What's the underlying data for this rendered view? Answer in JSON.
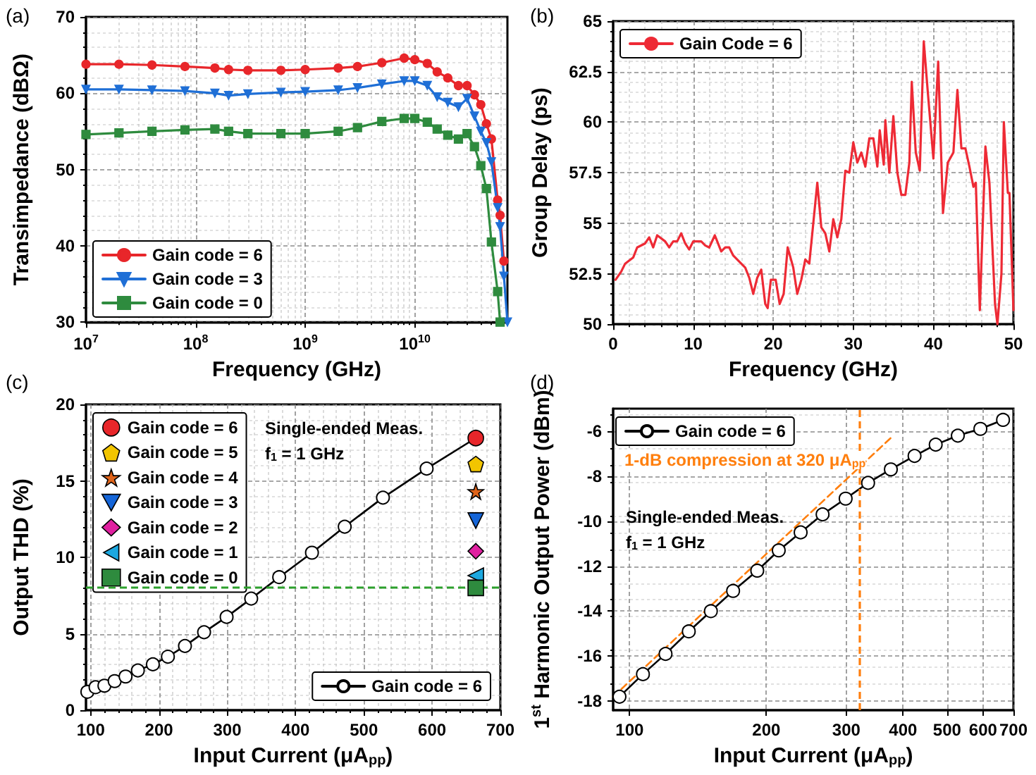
{
  "chart_data": [
    {
      "type": "line",
      "annotations": [
        "(a)"
      ],
      "xlabel": "Frequency (GHz)",
      "ylabel": "Transimpedance (dBΩ)",
      "log": "x",
      "grid": true,
      "legend": "bottom left",
      "x": [
        10000000,
        20000000,
        40000000,
        80000000,
        150000000,
        200000000,
        300000000,
        600000000,
        1000000000,
        2000000000,
        3000000000,
        5000000000,
        8000000000,
        10000000000,
        13000000000,
        16000000000,
        20000000000,
        25000000000,
        30000000000,
        35000000000,
        40000000000,
        45000000000,
        50000000000,
        57000000000,
        60000000000,
        65000000000,
        70000000000
      ],
      "xlim": [
        10000000,
        70000000000
      ],
      "xticks": [
        {
          "value": 10000000,
          "label": "10$^{7}$"
        },
        {
          "value": 100000000,
          "label": "10$^{8}$"
        },
        {
          "value": 1000000000,
          "label": "10$^{9}$"
        },
        {
          "value": 10000000000,
          "label": "10$^{10}$"
        }
      ],
      "ylim": [
        30,
        70
      ],
      "yticks": [
        30,
        40,
        50,
        60,
        70
      ],
      "series": [
        {
          "name": "Gain code = 6",
          "color": "#e8262a",
          "marker": "circle",
          "values": [
            63.8,
            63.8,
            63.7,
            63.5,
            63.3,
            63.1,
            63.0,
            63.0,
            63.1,
            63.3,
            63.5,
            64.0,
            64.6,
            64.4,
            63.9,
            62.8,
            62.0,
            61.0,
            61.0,
            59.8,
            58.5,
            56.0,
            54.0,
            46.0,
            44.0,
            38.0,
            null
          ]
        },
        {
          "name": "Gain code = 3",
          "color": "#1f6fd6",
          "marker": "triangle-down",
          "values": [
            60.5,
            60.5,
            60.4,
            60.3,
            60.0,
            59.7,
            59.9,
            60.1,
            60.2,
            60.4,
            60.7,
            61.2,
            61.6,
            61.6,
            61.0,
            59.5,
            58.8,
            58.2,
            59.3,
            57.0,
            55.0,
            53.5,
            51.0,
            45.0,
            42.5,
            36.0,
            30.0
          ]
        },
        {
          "name": "Gain code = 0",
          "color": "#2e8b3e",
          "marker": "square",
          "values": [
            54.6,
            54.8,
            55.0,
            55.2,
            55.3,
            55.0,
            54.7,
            54.7,
            54.7,
            55.0,
            55.5,
            56.3,
            56.7,
            56.7,
            56.2,
            55.3,
            54.5,
            54.0,
            54.7,
            53.0,
            50.5,
            47.5,
            40.5,
            34.0,
            30.0,
            null,
            null
          ]
        }
      ]
    },
    {
      "type": "line",
      "annotations": [
        "(b)"
      ],
      "xlabel": "Frequency (GHz)",
      "ylabel": "Group Delay (ps)",
      "grid": true,
      "legend": "top left",
      "xlim": [
        0,
        50
      ],
      "xticks": [
        0,
        10,
        20,
        30,
        40,
        50
      ],
      "ylim": [
        50,
        65
      ],
      "yticks": [
        50,
        52.5,
        55,
        57.5,
        60,
        62.5,
        65
      ],
      "x": [
        0.3,
        1,
        1.5,
        2.5,
        3,
        4,
        4.5,
        5,
        5.5,
        6.5,
        7,
        7.5,
        8,
        8.5,
        9,
        9.5,
        10,
        11,
        11.5,
        12,
        12.7,
        13.5,
        14,
        14.5,
        15,
        16,
        16.5,
        17,
        17.5,
        18,
        18.5,
        19,
        19.3,
        19.7,
        20.3,
        20.8,
        21.3,
        21.8,
        22.5,
        23,
        23.5,
        24,
        24.5,
        25,
        25.5,
        26,
        26.5,
        27,
        27.5,
        28,
        28.5,
        29,
        29.5,
        30,
        30.5,
        31,
        31.5,
        32,
        32.5,
        33,
        33.3,
        33.8,
        34,
        34.5,
        35,
        35.5,
        36,
        36.5,
        37,
        37.3,
        37.8,
        38.3,
        38.8,
        39.3,
        40,
        40.6,
        41.2,
        41.8,
        42.5,
        43,
        43.5,
        44,
        44.5,
        45,
        45.3,
        45.8,
        46.5,
        47,
        47.7,
        48,
        48.5,
        48.8,
        49.3,
        49.5,
        50
      ],
      "series": [
        {
          "name": "Gain Code = 6",
          "color": "#ee2a35",
          "marker": "none",
          "values": [
            52.2,
            52.6,
            53.0,
            53.3,
            53.8,
            54.0,
            54.3,
            53.8,
            54.4,
            54.1,
            53.8,
            54.1,
            54.1,
            54.5,
            54.0,
            53.7,
            54.1,
            54.1,
            53.9,
            53.8,
            54.4,
            53.6,
            53.8,
            53.8,
            53.4,
            53.0,
            52.8,
            52.3,
            51.5,
            52.3,
            52.7,
            51.0,
            50.8,
            52.2,
            52.2,
            51.0,
            51.5,
            53.8,
            52.8,
            51.5,
            52.2,
            53.2,
            53.0,
            55.0,
            57.0,
            54.8,
            54.5,
            53.6,
            55.2,
            54.3,
            55.2,
            57.6,
            57.5,
            59.0,
            58.0,
            58.5,
            57.8,
            59.2,
            59.2,
            57.8,
            59.6,
            57.9,
            60.1,
            57.5,
            60.3,
            57.5,
            56.4,
            56.4,
            58.0,
            62.0,
            58.5,
            57.6,
            64.0,
            61.5,
            58.2,
            63.0,
            55.5,
            58.0,
            58.5,
            61.6,
            58.7,
            58.7,
            57.8,
            56.8,
            57.0,
            50.7,
            58.8,
            57.0,
            51.0,
            50.0,
            52.5,
            60.0,
            56.5,
            56.5,
            50.7
          ]
        }
      ]
    },
    {
      "type": "line",
      "annotations": [
        "(c)",
        "Single-ended Meas.",
        "f$_{1}$ = 1 GHz"
      ],
      "xlabel": "Input Current (μA$_{pp}$)",
      "ylabel": "Output THD (%)",
      "grid": true,
      "legend": "top left",
      "xlim": [
        93,
        700
      ],
      "xticks": [
        100,
        200,
        300,
        400,
        500,
        600,
        700
      ],
      "ylim": [
        0,
        20
      ],
      "yticks": [
        0,
        5,
        10,
        15,
        20
      ],
      "x": [
        95,
        107,
        120,
        135,
        151,
        169,
        191,
        213,
        238,
        266,
        299,
        335,
        376,
        424,
        472,
        528,
        592,
        664
      ],
      "ref_lines": [
        {
          "axis": "y",
          "value": 8,
          "color": "#2ca02c",
          "line_style": "dashed"
        }
      ],
      "series": [
        {
          "name": "Gain code = 6",
          "color": "#000000",
          "marker": "circle",
          "values": [
            1.2,
            1.5,
            1.6,
            1.9,
            2.2,
            2.6,
            3.0,
            3.5,
            4.2,
            5.1,
            6.1,
            7.3,
            8.7,
            10.3,
            12.0,
            13.9,
            15.8,
            17.8
          ]
        },
        {
          "type": "scatter",
          "name": "Gain code = 6",
          "color": "#e8262a",
          "marker": "circle",
          "x": [
            664
          ],
          "values": [
            17.8
          ]
        },
        {
          "type": "scatter",
          "name": "Gain code = 5",
          "color": "#f2c500",
          "x": [
            664
          ],
          "values": [
            16.1
          ]
        },
        {
          "type": "scatter",
          "name": "Gain code = 4",
          "color": "#e0641a",
          "marker": "star",
          "x": [
            664
          ],
          "values": [
            14.3
          ]
        },
        {
          "type": "scatter",
          "name": "Gain code = 3",
          "color": "#1565d8",
          "marker": "triangle-down",
          "x": [
            664
          ],
          "values": [
            12.4
          ]
        },
        {
          "type": "scatter",
          "name": "Gain code = 2",
          "color": "#e020a0",
          "marker": "diamond",
          "x": [
            664
          ],
          "values": [
            10.4
          ]
        },
        {
          "type": "scatter",
          "name": "Gain code = 1",
          "color": "#1ca8e0",
          "marker": "triangle-left",
          "x": [
            664
          ],
          "values": [
            8.8
          ]
        },
        {
          "type": "scatter",
          "name": "Gain code = 0",
          "color": "#2e8b3e",
          "marker": "square",
          "x": [
            664
          ],
          "values": [
            8.0
          ]
        }
      ]
    },
    {
      "type": "line",
      "annotations": [
        "(d)",
        "Single-ended Meas.",
        "f$_{1}$ = 1 GHz"
      ],
      "xlabel": "Input Current (μA$_{pp}$)",
      "ylabel": "1$^{st}$ Harmonic Output Power (dBm)",
      "log": "x",
      "grid": true,
      "legend": "top left",
      "xlim": [
        92,
        700
      ],
      "xticks": [
        100,
        200,
        300,
        400,
        500,
        600,
        700
      ],
      "ylim": [
        -18.4,
        -5
      ],
      "yticks": [
        -18,
        -16,
        -14,
        -12,
        -10,
        -8,
        -6
      ],
      "x": [
        95,
        107,
        120,
        135,
        151,
        169,
        191,
        213,
        238,
        266,
        299,
        335,
        376,
        424,
        472,
        528,
        592,
        664
      ],
      "ref_lines": [
        {
          "axis": "x",
          "value": 320,
          "label": "1-dB compression at 320 μA$_{pp}$",
          "color": "#ff7f0e",
          "line_style": "dashed"
        }
      ],
      "series": [
        {
          "color": "#ff7f0e",
          "marker": "none",
          "line_style": "dashed",
          "x": [
            92,
            376
          ],
          "values": [
            -17.8,
            -6.3
          ]
        },
        {
          "name": "Gain code = 6",
          "color": "#000000",
          "marker": "circle",
          "values": [
            -17.8,
            -16.8,
            -15.9,
            -14.9,
            -14.0,
            -13.1,
            -12.2,
            -11.3,
            -10.5,
            -9.7,
            -9.0,
            -8.3,
            -7.7,
            -7.1,
            -6.6,
            -6.2,
            -5.9,
            -5.5
          ]
        }
      ]
    }
  ]
}
